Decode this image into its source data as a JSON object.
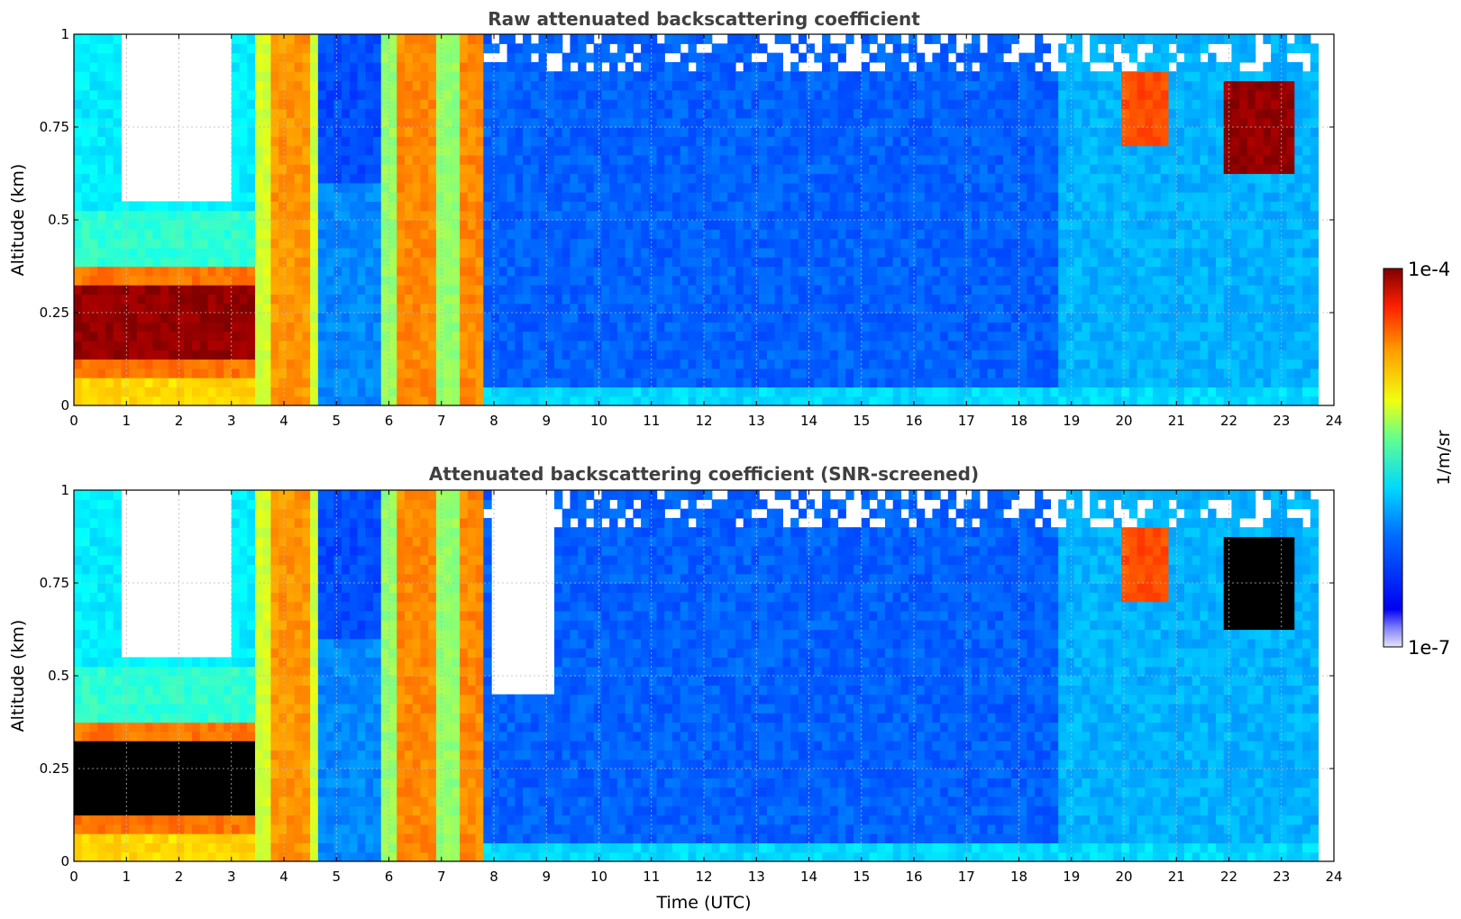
{
  "chart_data": [
    {
      "type": "heatmap",
      "title": "Raw attenuated backscattering coefficient",
      "xlabel": "",
      "ylabel": "Altitude (km)",
      "xlim": [
        0,
        24
      ],
      "ylim": [
        0,
        1
      ],
      "x_ticks": [
        "0",
        "1",
        "2",
        "3",
        "4",
        "5",
        "6",
        "7",
        "8",
        "9",
        "10",
        "11",
        "12",
        "13",
        "14",
        "15",
        "16",
        "17",
        "18",
        "19",
        "20",
        "21",
        "22",
        "23",
        "24"
      ],
      "y_ticks": [
        "0",
        "0.25",
        "0.5",
        "0.75",
        "1"
      ],
      "grid": true,
      "colormap": "jet",
      "color_scale": "log",
      "vlim": [
        "1e-7",
        "1e-4"
      ],
      "features": [
        {
          "x": [
            0,
            3.3
          ],
          "y": [
            0.1,
            0.35
          ],
          "level": "high"
        },
        {
          "x": [
            3.5,
            4.6
          ],
          "y": [
            0,
            1
          ],
          "level": "medium-high"
        },
        {
          "x": [
            5.9,
            7.7
          ],
          "y": [
            0,
            1
          ],
          "level": "medium-high"
        },
        {
          "x": [
            20.0,
            20.8
          ],
          "y": [
            0.7,
            0.9
          ],
          "level": "medium-high"
        },
        {
          "x": [
            21.9,
            23.3
          ],
          "y": [
            0.63,
            0.88
          ],
          "level": "high"
        }
      ]
    },
    {
      "type": "heatmap",
      "title": "Attenuated backscattering coefficient (SNR-screened)",
      "xlabel": "Time (UTC)",
      "ylabel": "Altitude (km)",
      "xlim": [
        0,
        24
      ],
      "ylim": [
        0,
        1
      ],
      "x_ticks": [
        "0",
        "1",
        "2",
        "3",
        "4",
        "5",
        "6",
        "7",
        "8",
        "9",
        "10",
        "11",
        "12",
        "13",
        "14",
        "15",
        "16",
        "17",
        "18",
        "19",
        "20",
        "21",
        "22",
        "23",
        "24"
      ],
      "y_ticks": [
        "0",
        "0.25",
        "0.5",
        "0.75",
        "1"
      ],
      "grid": true,
      "colormap": "jet",
      "color_scale": "log",
      "vlim": [
        "1e-7",
        "1e-4"
      ],
      "features": [
        {
          "x": [
            0,
            3.3
          ],
          "y": [
            0.1,
            0.35
          ],
          "level": "saturated"
        },
        {
          "x": [
            3.5,
            4.6
          ],
          "y": [
            0,
            1
          ],
          "level": "medium-high"
        },
        {
          "x": [
            5.9,
            7.7
          ],
          "y": [
            0,
            1
          ],
          "level": "medium-high"
        },
        {
          "x": [
            20.0,
            20.8
          ],
          "y": [
            0.7,
            0.9
          ],
          "level": "medium-high"
        },
        {
          "x": [
            21.9,
            23.3
          ],
          "y": [
            0.63,
            0.88
          ],
          "level": "saturated"
        }
      ]
    }
  ],
  "colorbar": {
    "max_label": "1e-4",
    "min_label": "1e-7",
    "label": "1/m/sr"
  }
}
